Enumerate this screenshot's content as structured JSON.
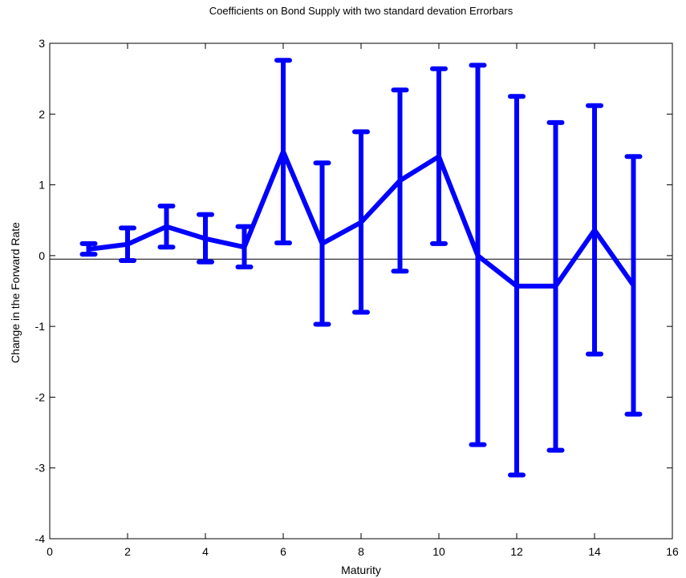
{
  "chart_data": {
    "type": "line",
    "title": "Coefficients on Bond Supply with two standard devation Errorbars",
    "xlabel": "Maturity",
    "ylabel": "Change in the Forward Rate",
    "xlim": [
      0,
      16
    ],
    "ylim": [
      -4,
      3
    ],
    "xticks": [
      0,
      2,
      4,
      6,
      8,
      10,
      12,
      14,
      16
    ],
    "yticks": [
      -4,
      -3,
      -2,
      -1,
      0,
      1,
      2,
      3
    ],
    "grid": false,
    "legend": "none",
    "line_color": "#0000ff",
    "reference_line": {
      "x": [
        0,
        16
      ],
      "y": [
        -0.05,
        -0.05
      ],
      "color": "#000000"
    },
    "series": [
      {
        "x": [
          1,
          2,
          3,
          4,
          5,
          6,
          7,
          8,
          9,
          10,
          11,
          12,
          13,
          14,
          15
        ],
        "y": [
          0.09,
          0.16,
          0.41,
          0.24,
          0.12,
          1.47,
          0.17,
          0.47,
          1.06,
          1.4,
          0.0,
          -0.43,
          -0.43,
          0.36,
          -0.42
        ],
        "lower": [
          0.02,
          -0.07,
          0.12,
          -0.09,
          -0.16,
          0.18,
          -0.97,
          -0.8,
          -0.22,
          0.17,
          -2.67,
          -3.1,
          -2.75,
          -1.39,
          -2.24
        ],
        "upper": [
          0.17,
          0.39,
          0.7,
          0.58,
          0.41,
          2.76,
          1.31,
          1.75,
          2.34,
          2.64,
          2.69,
          2.25,
          1.88,
          2.12,
          1.4
        ]
      }
    ]
  }
}
